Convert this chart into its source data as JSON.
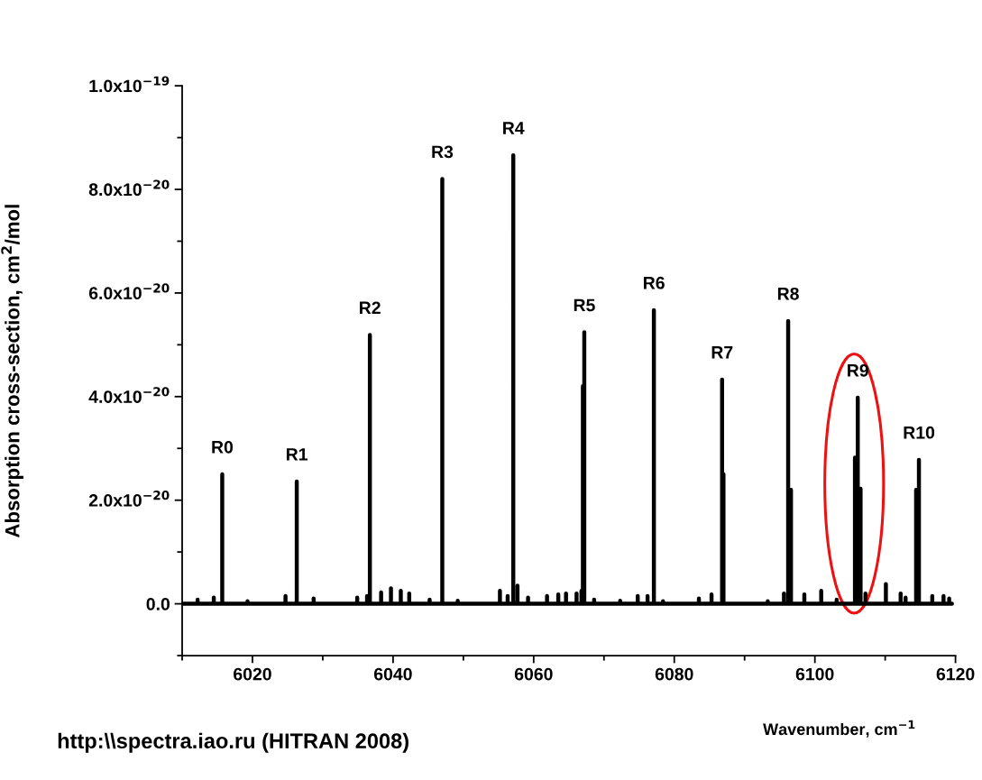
{
  "chart_data": {
    "type": "line",
    "xlabel": "Wavenumber, cm$^{−1}$",
    "ylabel": "Absorption cross-section, cm$^{2}$/mol",
    "xlim": [
      6010,
      6120
    ],
    "ylim": [
      -1e-20,
      1e-19
    ],
    "xticks": [
      {
        "value": 6010,
        "label": null
      },
      6020,
      {
        "value": 6030,
        "label": null
      },
      6040,
      {
        "value": 6050,
        "label": null
      },
      6060,
      {
        "value": 6070,
        "label": null
      },
      6080,
      {
        "value": 6090,
        "label": null
      },
      6100,
      {
        "value": 6110,
        "label": null
      },
      6120
    ],
    "yticks": [
      {
        "value": -1e-20,
        "label": null
      },
      {
        "value": 0,
        "label": "0.0"
      },
      {
        "value": 1e-20,
        "label": null
      },
      {
        "value": 2e-20,
        "label": "2.0x10$^{−20}$"
      },
      {
        "value": 3e-20,
        "label": null
      },
      {
        "value": 4e-20,
        "label": "4.0x10$^{−20}$"
      },
      {
        "value": 5e-20,
        "label": null
      },
      {
        "value": 6e-20,
        "label": "6.0x10$^{−20}$"
      },
      {
        "value": 7e-20,
        "label": null
      },
      {
        "value": 8e-20,
        "label": "8.0x10$^{−20}$"
      },
      {
        "value": 9e-20,
        "label": null
      },
      {
        "value": 1e-19,
        "label": "1.0x10$^{−19}$"
      }
    ],
    "grid": false,
    "legend": false,
    "marker": "none",
    "line_style": "solid",
    "series": [
      {
        "color": "#000000",
        "x": [
          6010,
          6012.2,
          6012.2,
          6012.2,
          6014.5,
          6014.5,
          6014.5,
          6015.7,
          6015.7,
          6015.7,
          6019.3,
          6019.3,
          6019.3,
          6024.7,
          6024.7,
          6024.7,
          6026.3,
          6026.3,
          6026.3,
          6028.7,
          6028.7,
          6028.7,
          6034.9,
          6034.9,
          6034.9,
          6036.3,
          6036.3,
          6036.3,
          6036.7,
          6036.7,
          6036.7,
          6038.3,
          6038.3,
          6038.3,
          6039.7,
          6039.7,
          6039.7,
          6041.1,
          6041.1,
          6041.1,
          6042.3,
          6042.3,
          6042.3,
          6045.2,
          6045.2,
          6045.2,
          6047.0,
          6047.0,
          6047.0,
          6049.2,
          6049.2,
          6049.2,
          6055.2,
          6055.2,
          6055.2,
          6056.3,
          6056.3,
          6056.3,
          6057.1,
          6057.1,
          6057.1,
          6057.7,
          6057.7,
          6057.7,
          6059.2,
          6059.2,
          6059.2,
          6061.9,
          6061.9,
          6061.9,
          6063.5,
          6063.5,
          6063.5,
          6064.6,
          6064.6,
          6064.6,
          6066.1,
          6066.1,
          6066.1,
          6066.8,
          6066.8,
          6066.8,
          6067.0,
          6067.0,
          6067.0,
          6067.2,
          6067.2,
          6067.2,
          6068.6,
          6068.6,
          6068.6,
          6072.3,
          6072.3,
          6072.3,
          6074.8,
          6074.8,
          6074.8,
          6076.2,
          6076.2,
          6076.2,
          6077.1,
          6077.1,
          6077.1,
          6078.4,
          6078.4,
          6078.4,
          6083.5,
          6083.5,
          6083.5,
          6085.3,
          6085.3,
          6085.3,
          6086.8,
          6086.8,
          6086.8,
          6087.0,
          6087.0,
          6087.0,
          6093.3,
          6093.3,
          6093.3,
          6095.6,
          6095.6,
          6095.6,
          6096.2,
          6096.2,
          6096.2,
          6096.6,
          6096.6,
          6096.6,
          6098.5,
          6098.5,
          6098.5,
          6100.9,
          6100.9,
          6100.9,
          6103.1,
          6103.1,
          6103.1,
          6105.7,
          6105.7,
          6105.7,
          6106.1,
          6106.1,
          6106.1,
          6106.5,
          6106.5,
          6106.5,
          6107.2,
          6107.2,
          6107.2,
          6110.1,
          6110.1,
          6110.1,
          6112.2,
          6112.2,
          6112.2,
          6112.9,
          6112.9,
          6112.9,
          6114.4,
          6114.4,
          6114.4,
          6114.8,
          6114.8,
          6114.8,
          6116.7,
          6116.7,
          6116.7,
          6118.3,
          6118.3,
          6118.3,
          6119.1,
          6119.1,
          6119.1,
          6119.5
        ],
        "values": [
          0,
          0,
          8e-22,
          0,
          0,
          1.2e-21,
          0,
          0,
          2.5e-20,
          0,
          0,
          5e-22,
          0,
          0,
          1.5e-21,
          0,
          0,
          2.36e-20,
          0,
          0,
          1e-21,
          0,
          0,
          1.2e-21,
          0,
          0,
          1.5e-21,
          0,
          0,
          5.19e-20,
          0,
          0,
          2.2e-21,
          0,
          0,
          3e-21,
          0,
          0,
          2.5e-21,
          0,
          0,
          2e-21,
          0,
          0,
          8e-22,
          0,
          0,
          8.2e-20,
          0,
          0,
          6e-22,
          0,
          0,
          2.5e-21,
          0,
          0,
          1.5e-21,
          0,
          0,
          8.66e-20,
          0,
          0,
          3.5e-21,
          0,
          0,
          1.2e-21,
          0,
          0,
          1.5e-21,
          0,
          0,
          1.8e-21,
          0,
          0,
          2e-21,
          0,
          0,
          2e-21,
          0,
          0,
          2.5e-21,
          0,
          0,
          4.2e-20,
          0,
          0,
          5.24e-20,
          0,
          0,
          8e-22,
          0,
          0,
          6e-22,
          0,
          0,
          1.5e-21,
          0,
          0,
          1.5e-21,
          0,
          0,
          5.67e-20,
          0,
          0,
          5e-22,
          0,
          0,
          1e-21,
          0,
          0,
          1.8e-21,
          0,
          0,
          4.33e-20,
          0,
          0,
          2.5e-20,
          0,
          0,
          5e-22,
          0,
          0,
          2e-21,
          0,
          0,
          5.46e-20,
          0,
          0,
          2.2e-20,
          0,
          0,
          1.8e-21,
          0,
          0,
          2.5e-21,
          0,
          0,
          8e-22,
          0,
          0,
          2.82e-20,
          0,
          0,
          3.98e-20,
          0,
          0,
          2.22e-20,
          0,
          0,
          2e-21,
          0,
          0,
          3.8e-21,
          0,
          0,
          2e-21,
          0,
          0,
          1.2e-21,
          0,
          0,
          2.2e-20,
          0,
          0,
          2.78e-20,
          0,
          0,
          1.5e-21,
          0,
          0,
          1.5e-21,
          0,
          0,
          1e-21,
          0,
          0
        ]
      }
    ],
    "annotations": [
      {
        "text": "R0",
        "x": 6015.7,
        "y": 2.5e-20
      },
      {
        "text": "R1",
        "x": 6026.3,
        "y": 2.36e-20
      },
      {
        "text": "R2",
        "x": 6036.7,
        "y": 5.19e-20
      },
      {
        "text": "R3",
        "x": 6047.0,
        "y": 8.2e-20
      },
      {
        "text": "R4",
        "x": 6057.1,
        "y": 8.66e-20
      },
      {
        "text": "R5",
        "x": 6067.2,
        "y": 5.24e-20
      },
      {
        "text": "R6",
        "x": 6077.1,
        "y": 5.67e-20
      },
      {
        "text": "R7",
        "x": 6086.8,
        "y": 4.33e-20
      },
      {
        "text": "R8",
        "x": 6096.2,
        "y": 5.46e-20
      },
      {
        "text": "R9",
        "x": 6106.1,
        "y": 3.98e-20
      },
      {
        "text": "R10",
        "x": 6114.8,
        "y": 2.78e-20
      },
      "http:\\\\spectra.iao.ru (HITRAN 2008)"
    ]
  }
}
